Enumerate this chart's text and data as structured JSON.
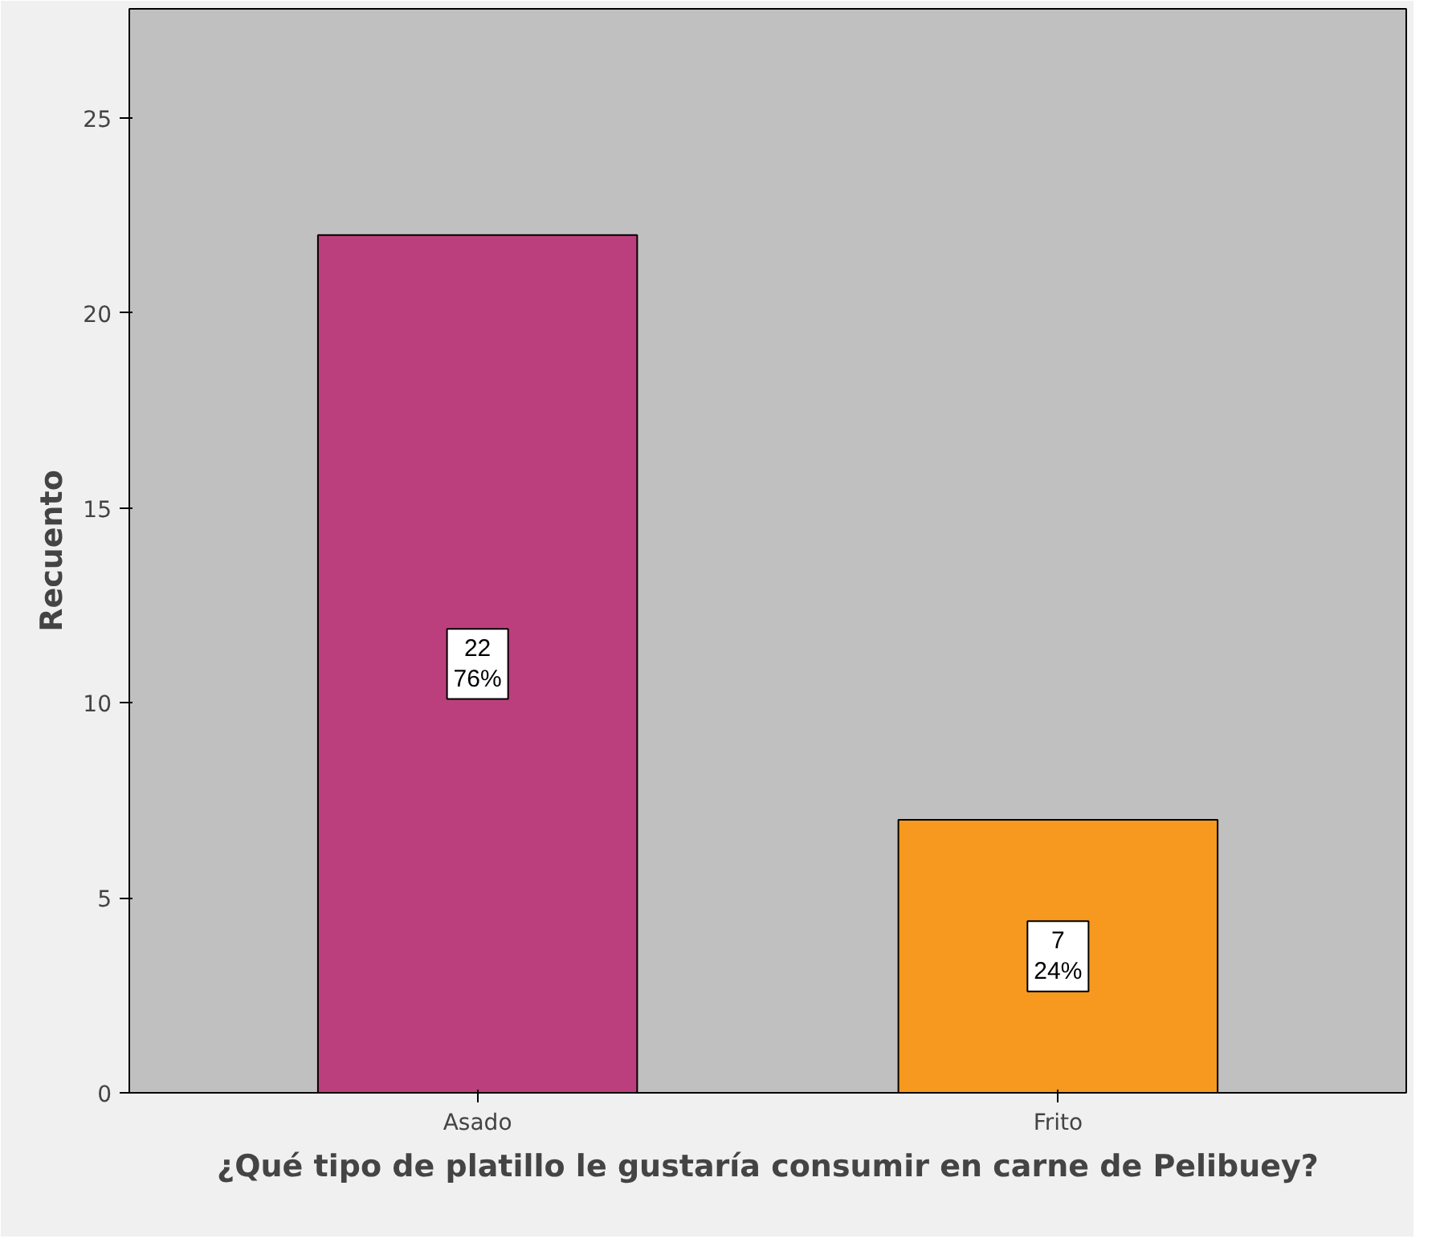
{
  "chart_data": {
    "type": "bar",
    "xlabel": "¿Qué tipo de platillo le gustaría consumir en carne de Pelibuey?",
    "ylabel": "Recuento",
    "categories": [
      "Asado",
      "Frito"
    ],
    "values": [
      22,
      7
    ],
    "colors": [
      "#bc3f7d",
      "#f7981f"
    ],
    "value_labels": [
      "22\n76%",
      "7\n24%"
    ],
    "ylim": [
      0,
      27.8
    ],
    "yticks": [
      0,
      5,
      10,
      15,
      20,
      25
    ],
    "grid": false
  }
}
